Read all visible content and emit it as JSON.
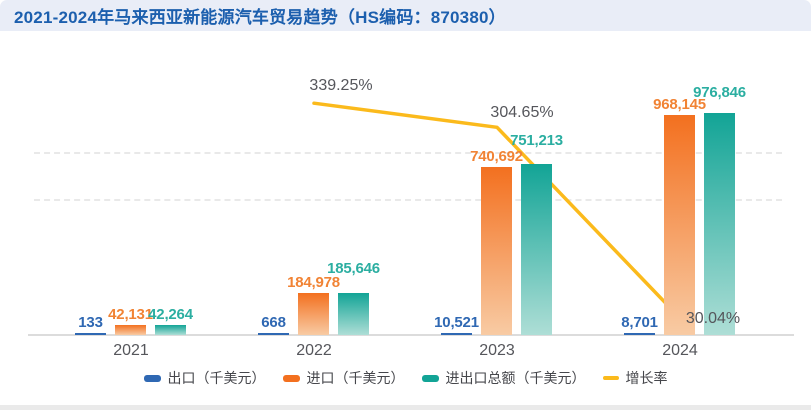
{
  "title": {
    "text": "2021-2024年马来西亚新能源汽车贸易趋势（HS编码：870380）",
    "text_color": "#1C5FAE",
    "bar_background": "#E9EDF7"
  },
  "chart_data": {
    "type": "bar",
    "subtype": "grouped-bars-with-line-overlay",
    "title": "2021-2024年马来西亚新能源汽车贸易趋势（HS编码：870380）",
    "categories": [
      "2021",
      "2022",
      "2023",
      "2024"
    ],
    "series": [
      {
        "name": "出口（千美元）",
        "type": "bar",
        "color": "#2F68B3",
        "label_color": "#2F68B3",
        "values": [
          133,
          668,
          10521,
          8701
        ],
        "value_labels": [
          "133",
          "668",
          "10,521",
          "8,701"
        ]
      },
      {
        "name": "进口（千美元）",
        "type": "bar",
        "color": "#F3701F",
        "color_bottom": "#F8CBA4",
        "label_color": "#F18334",
        "values": [
          42131,
          184978,
          740692,
          968145
        ],
        "value_labels": [
          "42,131",
          "184,978",
          "740,692",
          "968,145"
        ]
      },
      {
        "name": "进出口总额（千美元）",
        "type": "bar",
        "color": "#12A496",
        "color_bottom": "#AEDED6",
        "label_color": "#2BAEA1",
        "values": [
          42264,
          185646,
          751213,
          976846
        ],
        "value_labels": [
          "42,264",
          "185,646",
          "751,213",
          "976,846"
        ]
      },
      {
        "name": "增长率",
        "type": "line",
        "color": "#FBBA1C",
        "label_color": "#55565B",
        "values": [
          null,
          339.25,
          304.65,
          30.04
        ],
        "value_labels": [
          null,
          "339.25%",
          "304.65%",
          "30.04%"
        ]
      }
    ],
    "xlabel": "",
    "ylabel": "",
    "left_axis": {
      "ticks_visible": false,
      "range_estimate": [
        0,
        1000000
      ],
      "gridline_values_estimate": [
        600000,
        800000
      ]
    },
    "right_axis": {
      "ticks_visible": false,
      "unit": "%"
    },
    "grid": "two faint horizontal dashed gridlines, no axis tick labels",
    "legend_position": "bottom"
  }
}
